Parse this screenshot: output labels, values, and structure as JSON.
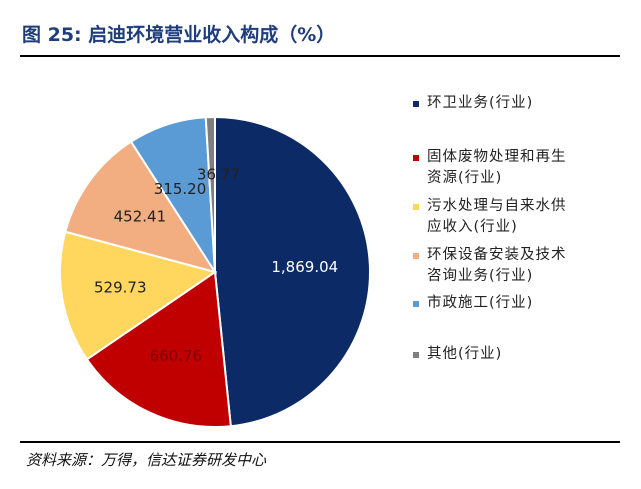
{
  "header": {
    "title": "图 25:  启迪环境营业收入构成（%）"
  },
  "footer": {
    "source": "资料来源：万得，信达证券研发中心"
  },
  "chart_data": {
    "type": "pie",
    "labels": [
      "环卫业务(行业)",
      "固体废物处理和再生\n资源(行业)",
      "污水处理与自来水供\n应收入(行业)",
      "环保设备安装及技术\n咨询业务(行业)",
      "市政施工(行业)",
      "其他(行业)"
    ],
    "values": [
      1869.04,
      660.76,
      529.73,
      452.41,
      315.2,
      36.77
    ],
    "value_labels": [
      "1,869.04",
      "660.76",
      "529.73",
      "452.41",
      "315.20",
      "36.77"
    ],
    "colors": [
      "#0b2a66",
      "#c00000",
      "#ffd75e",
      "#f2ad81",
      "#5b9bd5",
      "#7f7f7f"
    ],
    "label_colors": [
      "#ffffff",
      "#7a0000",
      "#222222",
      "#222222",
      "#222222",
      "#222222"
    ],
    "start_angle": "12 o'clock",
    "direction": "clockwise",
    "legend_position": "right"
  }
}
